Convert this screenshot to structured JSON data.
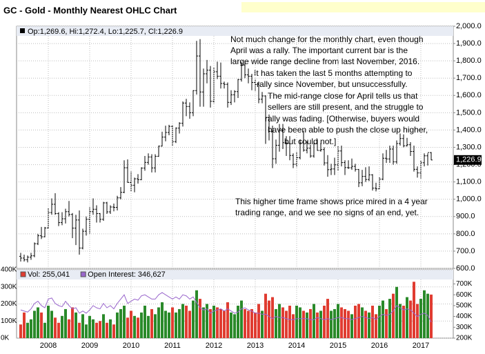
{
  "title": "GC - Gold - Monthly Nearest OHLC Chart",
  "chart_data": [
    {
      "type": "ohlc",
      "header": "Op:1,269.6, Hi:1,272.4, Lo:1,225.7, Cl:1,226.9",
      "color": "#000000",
      "grid": true,
      "ylim": [
        600,
        2000
      ],
      "yticks": [
        {
          "value": 600,
          "label": "600.0"
        },
        {
          "value": 700,
          "label": "700.0"
        },
        {
          "value": 800,
          "label": "800.0"
        },
        {
          "value": 900,
          "label": "900.0"
        },
        {
          "value": 1000,
          "label": "1,000.0"
        },
        {
          "value": 1100,
          "label": "1,100.0"
        },
        {
          "value": 1200,
          "label": "1,200.0"
        },
        {
          "value": 1300,
          "label": "1,300.0"
        },
        {
          "value": 1400,
          "label": "1,400.0"
        },
        {
          "value": 1500,
          "label": "1,500.0"
        },
        {
          "value": 1600,
          "label": "1,600.0"
        },
        {
          "value": 1700,
          "label": "1,700.0"
        },
        {
          "value": 1800,
          "label": "1,800.0"
        },
        {
          "value": 1900,
          "label": "1,900.0"
        },
        {
          "value": 2000,
          "label": "2,000.0"
        }
      ],
      "last_price": {
        "value": 1226.9,
        "label": "1,226.9"
      },
      "open": [
        670,
        660,
        650,
        665,
        673,
        743,
        789,
        783,
        834,
        923,
        971,
        917,
        865,
        887,
        928,
        912,
        833,
        880,
        718,
        815,
        884,
        928,
        942,
        917,
        884,
        979,
        927,
        955,
        953,
        1008,
        1040,
        1182,
        1097,
        1081,
        1118,
        1113,
        1180,
        1213,
        1244,
        1181,
        1248,
        1307,
        1359,
        1386,
        1421,
        1333,
        1411,
        1439,
        1556,
        1536,
        1500,
        1628,
        1828,
        1620,
        1725,
        1746,
        1566,
        1737,
        1711,
        1669,
        1664,
        1560,
        1604,
        1622,
        1692,
        1776,
        1719,
        1711,
        1675,
        1663,
        1578,
        1597,
        1472,
        1392,
        1234,
        1312,
        1396,
        1327,
        1323,
        1253,
        1202,
        1240,
        1326,
        1284,
        1295,
        1250,
        1322,
        1282,
        1287,
        1210,
        1171,
        1175,
        1199,
        1279,
        1212,
        1183,
        1182,
        1190,
        1172,
        1095,
        1132,
        1114,
        1141,
        1064,
        1060,
        1116,
        1237,
        1233,
        1290,
        1216,
        1322,
        1351,
        1309,
        1315,
        1276,
        1173,
        1152,
        1211,
        1251,
        1269.6
      ],
      "high": [
        690,
        680,
        675,
        690,
        750,
        800,
        840,
        840,
        950,
        1005,
        1035,
        925,
        925,
        945,
        990,
        920,
        910,
        935,
        830,
        900,
        955,
        1005,
        965,
        920,
        985,
        985,
        965,
        975,
        1020,
        1070,
        1225,
        1230,
        1160,
        1125,
        1145,
        1185,
        1250,
        1265,
        1260,
        1260,
        1310,
        1390,
        1425,
        1430,
        1430,
        1415,
        1445,
        1565,
        1580,
        1560,
        1630,
        1915,
        1925,
        1755,
        1805,
        1770,
        1760,
        1795,
        1790,
        1680,
        1675,
        1630,
        1630,
        1695,
        1795,
        1800,
        1755,
        1725,
        1695,
        1680,
        1620,
        1600,
        1490,
        1425,
        1345,
        1435,
        1435,
        1365,
        1365,
        1265,
        1275,
        1345,
        1395,
        1335,
        1315,
        1330,
        1345,
        1325,
        1300,
        1255,
        1205,
        1240,
        1310,
        1310,
        1225,
        1225,
        1235,
        1205,
        1175,
        1170,
        1185,
        1190,
        1145,
        1095,
        1130,
        1265,
        1285,
        1310,
        1310,
        1340,
        1380,
        1375,
        1355,
        1330,
        1310,
        1190,
        1225,
        1265,
        1265,
        1272.4
      ],
      "low": [
        640,
        640,
        635,
        650,
        665,
        735,
        770,
        780,
        830,
        910,
        910,
        845,
        850,
        860,
        900,
        775,
        735,
        680,
        710,
        790,
        800,
        910,
        865,
        865,
        875,
        915,
        915,
        930,
        935,
        1000,
        1035,
        1095,
        1045,
        1040,
        1090,
        1110,
        1165,
        1200,
        1155,
        1155,
        1245,
        1305,
        1335,
        1370,
        1310,
        1325,
        1380,
        1420,
        1480,
        1465,
        1480,
        1605,
        1535,
        1535,
        1670,
        1530,
        1555,
        1695,
        1640,
        1640,
        1530,
        1545,
        1560,
        1585,
        1680,
        1700,
        1670,
        1630,
        1625,
        1555,
        1555,
        1320,
        1340,
        1180,
        1205,
        1275,
        1290,
        1250,
        1225,
        1180,
        1185,
        1230,
        1275,
        1265,
        1240,
        1240,
        1280,
        1275,
        1195,
        1130,
        1140,
        1140,
        1165,
        1190,
        1140,
        1175,
        1170,
        1160,
        1070,
        1075,
        1100,
        1105,
        1050,
        1045,
        1060,
        1110,
        1210,
        1210,
        1200,
        1205,
        1310,
        1300,
        1305,
        1250,
        1160,
        1125,
        1120,
        1190,
        1195,
        1225.7
      ],
      "close": [
        660,
        650,
        665,
        673,
        743,
        789,
        783,
        834,
        923,
        971,
        917,
        865,
        887,
        928,
        912,
        833,
        880,
        718,
        815,
        884,
        928,
        942,
        917,
        884,
        979,
        927,
        955,
        953,
        1008,
        1040,
        1182,
        1097,
        1081,
        1118,
        1113,
        1180,
        1213,
        1244,
        1181,
        1248,
        1307,
        1359,
        1386,
        1421,
        1333,
        1411,
        1439,
        1556,
        1536,
        1500,
        1628,
        1828,
        1620,
        1725,
        1746,
        1566,
        1737,
        1711,
        1669,
        1664,
        1560,
        1604,
        1622,
        1692,
        1776,
        1719,
        1711,
        1675,
        1663,
        1578,
        1597,
        1472,
        1392,
        1234,
        1312,
        1396,
        1327,
        1323,
        1253,
        1202,
        1240,
        1326,
        1284,
        1295,
        1250,
        1322,
        1282,
        1287,
        1210,
        1171,
        1175,
        1199,
        1279,
        1212,
        1183,
        1182,
        1190,
        1172,
        1095,
        1132,
        1114,
        1141,
        1064,
        1060,
        1116,
        1237,
        1233,
        1290,
        1216,
        1322,
        1351,
        1309,
        1315,
        1276,
        1173,
        1152,
        1211,
        1251,
        1269.6,
        1226.9
      ],
      "annotations": [
        [
          "Not much change for the monthly chart, even though",
          "April was a rally.  The important current bar is the",
          "large wide range decline from last November, 2016.",
          "It has taken the last 5 months attempting to",
          "rally since November, but unsuccessfully.",
          "The mid-range close for April tells us that",
          "sellers are still present, and the struggle to",
          "rally was fading.  [Otherwise, buyers would",
          "have been able to push the close up higher,",
          "but could not.]"
        ],
        [
          "This higher time frame shows price mired in a  4 year",
          "trading range, and we see no signs of an end, yet."
        ]
      ]
    },
    {
      "type": "bar",
      "grid": true,
      "categories": [
        null,
        null,
        null,
        null,
        null,
        null,
        null,
        null,
        "2008",
        null,
        null,
        null,
        null,
        null,
        null,
        null,
        null,
        null,
        null,
        null,
        "2009",
        null,
        null,
        null,
        null,
        null,
        null,
        null,
        null,
        null,
        null,
        null,
        "2010",
        null,
        null,
        null,
        null,
        null,
        null,
        null,
        null,
        null,
        null,
        null,
        "2011",
        null,
        null,
        null,
        null,
        null,
        null,
        null,
        null,
        null,
        null,
        null,
        "2012",
        null,
        null,
        null,
        null,
        null,
        null,
        null,
        null,
        null,
        null,
        null,
        "2013",
        null,
        null,
        null,
        null,
        null,
        null,
        null,
        null,
        null,
        null,
        null,
        "2014",
        null,
        null,
        null,
        null,
        null,
        null,
        null,
        null,
        null,
        null,
        null,
        "2015",
        null,
        null,
        null,
        null,
        null,
        null,
        null,
        null,
        null,
        null,
        null,
        "2016",
        null,
        null,
        null,
        null,
        null,
        null,
        null,
        null,
        null,
        null,
        null,
        "2017",
        null,
        null,
        null
      ],
      "ylim": [
        0,
        400000
      ],
      "yticks": [
        {
          "value": 0,
          "label": "0K"
        },
        {
          "value": 100000,
          "label": "100K"
        },
        {
          "value": 200000,
          "label": "200K"
        },
        {
          "value": 300000,
          "label": "300K"
        },
        {
          "value": 400000,
          "label": "400K"
        }
      ],
      "y2lim": [
        200000,
        830000
      ],
      "y2ticks": [
        {
          "value": 200000,
          "label": "200K"
        },
        {
          "value": 300000,
          "label": "300K"
        },
        {
          "value": 400000,
          "label": "400K"
        },
        {
          "value": 500000,
          "label": "500K"
        },
        {
          "value": 600000,
          "label": "600K"
        },
        {
          "value": 700000,
          "label": "700K"
        }
      ],
      "series": [
        {
          "name": "Vol: 255,041",
          "color": "#e03c31",
          "up_color": "#2a8a2a",
          "values": [
            80000,
            150000,
            90000,
            110000,
            160000,
            180000,
            150000,
            90000,
            190000,
            160000,
            120000,
            90000,
            130000,
            170000,
            110000,
            180000,
            150000,
            90000,
            140000,
            80000,
            130000,
            110000,
            90000,
            100000,
            140000,
            90000,
            110000,
            80000,
            150000,
            170000,
            190000,
            120000,
            160000,
            130000,
            120000,
            150000,
            190000,
            130000,
            170000,
            140000,
            180000,
            210000,
            160000,
            150000,
            180000,
            150000,
            170000,
            200000,
            190000,
            160000,
            220000,
            280000,
            230000,
            180000,
            200000,
            170000,
            190000,
            180000,
            170000,
            160000,
            210000,
            150000,
            140000,
            190000,
            220000,
            170000,
            160000,
            170000,
            150000,
            200000,
            160000,
            260000,
            220000,
            240000,
            170000,
            200000,
            180000,
            160000,
            190000,
            140000,
            190000,
            180000,
            160000,
            150000,
            170000,
            200000,
            150000,
            160000,
            190000,
            230000,
            160000,
            170000,
            200000,
            180000,
            170000,
            160000,
            140000,
            190000,
            200000,
            180000,
            160000,
            150000,
            190000,
            140000,
            190000,
            220000,
            170000,
            230000,
            260000,
            300000,
            200000,
            190000,
            240000,
            220000,
            330000,
            200000,
            230000,
            280000,
            260000,
            255041
          ]
        },
        {
          "name": "Open Interest: 346,627",
          "color": "#9966cc",
          "axis": "y2",
          "values": [
            460000,
            450000,
            440000,
            470000,
            520000,
            540000,
            500000,
            480000,
            560000,
            570000,
            520000,
            500000,
            490000,
            540000,
            500000,
            470000,
            480000,
            430000,
            450000,
            430000,
            460000,
            500000,
            480000,
            470000,
            520000,
            480000,
            500000,
            470000,
            520000,
            560000,
            600000,
            520000,
            540000,
            560000,
            550000,
            590000,
            600000,
            580000,
            560000,
            560000,
            600000,
            620000,
            600000,
            580000,
            560000,
            580000,
            560000,
            600000,
            590000,
            560000,
            580000,
            530000,
            480000,
            460000,
            470000,
            430000,
            450000,
            460000,
            470000,
            450000,
            470000,
            450000,
            430000,
            440000,
            470000,
            480000,
            460000,
            450000,
            430000,
            430000,
            420000,
            420000,
            400000,
            380000,
            400000,
            390000,
            390000,
            380000,
            370000,
            370000,
            380000,
            380000,
            380000,
            380000,
            370000,
            370000,
            390000,
            380000,
            370000,
            380000,
            370000,
            380000,
            390000,
            390000,
            380000,
            380000,
            370000,
            380000,
            390000,
            400000,
            390000,
            380000,
            390000,
            370000,
            400000,
            420000,
            410000,
            420000,
            450000,
            500000,
            480000,
            460000,
            470000,
            460000,
            430000,
            400000,
            420000,
            430000,
            410000,
            346627
          ]
        }
      ]
    }
  ]
}
